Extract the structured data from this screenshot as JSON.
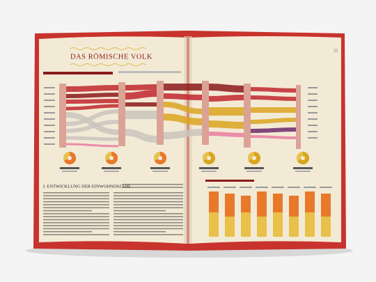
{
  "header": {
    "title": "DAS RÖMISCHE VOLK",
    "page_number": "23"
  },
  "section": {
    "heading": "I. ENTWICKLUNG DER EINWOHNERZAHL"
  }
}
